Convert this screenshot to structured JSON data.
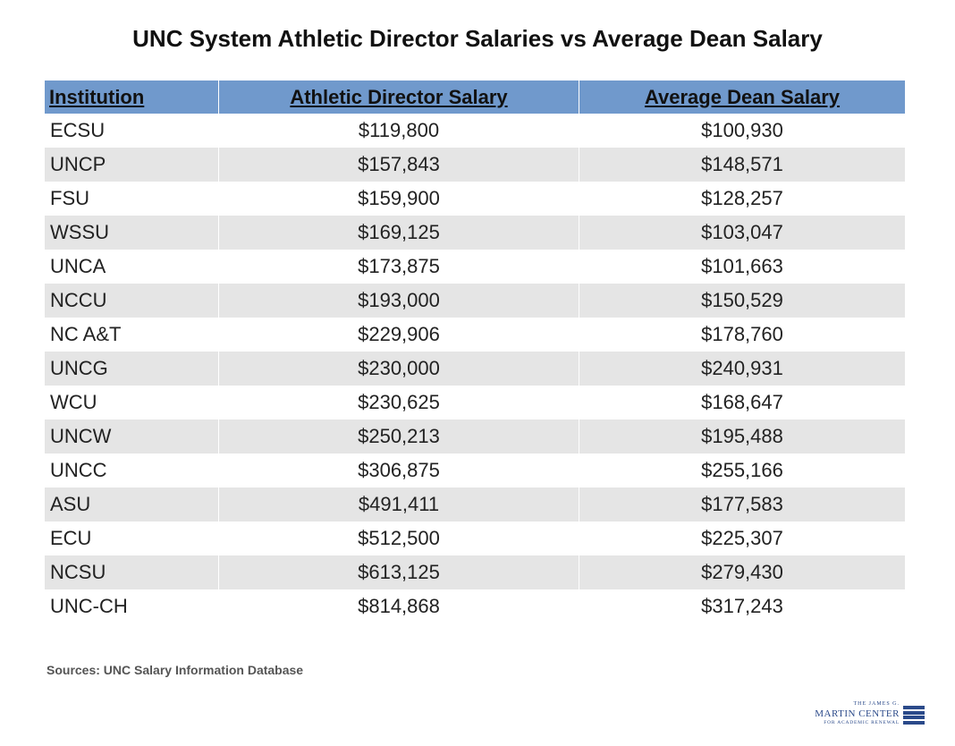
{
  "chart_data": {
    "type": "table",
    "title": "UNC System Athletic Director Salaries vs Average Dean Salary",
    "columns": [
      "Institution",
      "Athletic Director Salary",
      "Average Dean Salary"
    ],
    "rows": [
      [
        "ECSU",
        "$119,800",
        "$100,930"
      ],
      [
        "UNCP",
        "$157,843",
        "$148,571"
      ],
      [
        "FSU",
        "$159,900",
        "$128,257"
      ],
      [
        "WSSU",
        "$169,125",
        "$103,047"
      ],
      [
        "UNCA",
        "$173,875",
        "$101,663"
      ],
      [
        "NCCU",
        "$193,000",
        "$150,529"
      ],
      [
        "NC A&T",
        "$229,906",
        "$178,760"
      ],
      [
        "UNCG",
        "$230,000",
        "$240,931"
      ],
      [
        "WCU",
        "$230,625",
        "$168,647"
      ],
      [
        "UNCW",
        "$250,213",
        "$195,488"
      ],
      [
        "UNCC",
        "$306,875",
        "$255,166"
      ],
      [
        "ASU",
        "$491,411",
        "$177,583"
      ],
      [
        "ECU",
        "$512,500",
        "$225,307"
      ],
      [
        "NCSU",
        "$613,125",
        "$279,430"
      ],
      [
        "UNC-CH",
        "$814,868",
        "$317,243"
      ]
    ],
    "source": "Sources: UNC Salary Information Database"
  },
  "logo": {
    "line1": "THE JAMES G.",
    "line2": "MARTIN CENTER",
    "line3": "FOR ACADEMIC RENEWAL"
  },
  "colors": {
    "header": "#7099cc",
    "alt_row": "#e5e5e5"
  }
}
